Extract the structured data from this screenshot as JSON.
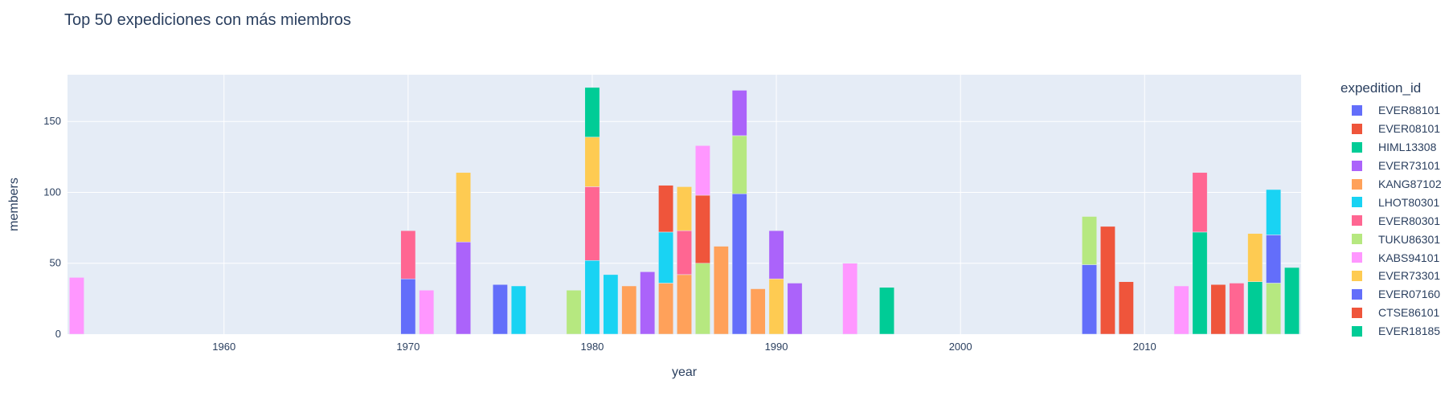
{
  "chart_data": {
    "type": "bar",
    "barmode": "stack",
    "title": "Top 50 expediciones con más miembros",
    "xlabel": "year",
    "ylabel": "members",
    "xlim": [
      1951.5,
      2018.5
    ],
    "ylim": [
      0,
      183
    ],
    "xticks": [
      1960,
      1970,
      1980,
      1990,
      2000,
      2010
    ],
    "yticks": [
      0,
      50,
      100,
      150
    ],
    "legend_title": "expedition_id",
    "legend_position": "right",
    "legend": [
      {
        "name": "EVER88101",
        "color": "#636efa"
      },
      {
        "name": "EVER08101",
        "color": "#ef553b"
      },
      {
        "name": "HIML13308",
        "color": "#00cc96"
      },
      {
        "name": "EVER73101",
        "color": "#ab63fa"
      },
      {
        "name": "KANG87102",
        "color": "#ffa15a"
      },
      {
        "name": "LHOT80301",
        "color": "#19d3f3"
      },
      {
        "name": "EVER80301",
        "color": "#ff6692"
      },
      {
        "name": "TUKU86301",
        "color": "#b6e880"
      },
      {
        "name": "KABS94101",
        "color": "#ff97ff"
      },
      {
        "name": "EVER73301",
        "color": "#fecb52"
      },
      {
        "name": "EVER07160",
        "color": "#636efa"
      },
      {
        "name": "CTSE86101",
        "color": "#ef553b"
      },
      {
        "name": "EVER18185",
        "color": "#00cc96"
      }
    ],
    "bars": [
      {
        "year": 1952,
        "segments": [
          {
            "value": 40,
            "color": "#ff97ff"
          }
        ]
      },
      {
        "year": 1970,
        "segments": [
          {
            "value": 39,
            "color": "#636efa"
          },
          {
            "value": 34,
            "color": "#ff6692"
          }
        ]
      },
      {
        "year": 1971,
        "segments": [
          {
            "value": 31,
            "color": "#ff97ff"
          }
        ]
      },
      {
        "year": 1973,
        "segments": [
          {
            "value": 65,
            "color": "#ab63fa"
          },
          {
            "value": 49,
            "color": "#fecb52"
          }
        ]
      },
      {
        "year": 1975,
        "segments": [
          {
            "value": 35,
            "color": "#636efa"
          }
        ]
      },
      {
        "year": 1976,
        "segments": [
          {
            "value": 34,
            "color": "#19d3f3"
          }
        ]
      },
      {
        "year": 1979,
        "segments": [
          {
            "value": 31,
            "color": "#b6e880"
          }
        ]
      },
      {
        "year": 1980,
        "segments": [
          {
            "value": 52,
            "color": "#19d3f3"
          },
          {
            "value": 52,
            "color": "#ff6692"
          },
          {
            "value": 35,
            "color": "#fecb52"
          },
          {
            "value": 35,
            "color": "#00cc96"
          }
        ]
      },
      {
        "year": 1981,
        "segments": [
          {
            "value": 42,
            "color": "#19d3f3"
          }
        ]
      },
      {
        "year": 1982,
        "segments": [
          {
            "value": 34,
            "color": "#ffa15a"
          }
        ]
      },
      {
        "year": 1983,
        "segments": [
          {
            "value": 44,
            "color": "#ab63fa"
          }
        ]
      },
      {
        "year": 1984,
        "segments": [
          {
            "value": 36,
            "color": "#ffa15a"
          },
          {
            "value": 36,
            "color": "#19d3f3"
          },
          {
            "value": 33,
            "color": "#ef553b"
          }
        ]
      },
      {
        "year": 1985,
        "segments": [
          {
            "value": 42,
            "color": "#ffa15a"
          },
          {
            "value": 31,
            "color": "#ff6692"
          },
          {
            "value": 31,
            "color": "#fecb52"
          }
        ]
      },
      {
        "year": 1986,
        "segments": [
          {
            "value": 50,
            "color": "#b6e880"
          },
          {
            "value": 48,
            "color": "#ef553b"
          },
          {
            "value": 35,
            "color": "#ff97ff"
          }
        ]
      },
      {
        "year": 1987,
        "segments": [
          {
            "value": 62,
            "color": "#ffa15a"
          }
        ]
      },
      {
        "year": 1988,
        "segments": [
          {
            "value": 99,
            "color": "#636efa"
          },
          {
            "value": 41,
            "color": "#b6e880"
          },
          {
            "value": 32,
            "color": "#ab63fa"
          }
        ]
      },
      {
        "year": 1989,
        "segments": [
          {
            "value": 32,
            "color": "#ffa15a"
          }
        ]
      },
      {
        "year": 1990,
        "segments": [
          {
            "value": 39,
            "color": "#fecb52"
          },
          {
            "value": 34,
            "color": "#ab63fa"
          }
        ]
      },
      {
        "year": 1991,
        "segments": [
          {
            "value": 36,
            "color": "#ab63fa"
          }
        ]
      },
      {
        "year": 1994,
        "segments": [
          {
            "value": 50,
            "color": "#ff97ff"
          }
        ]
      },
      {
        "year": 1996,
        "segments": [
          {
            "value": 33,
            "color": "#00cc96"
          }
        ]
      },
      {
        "year": 2007,
        "segments": [
          {
            "value": 49,
            "color": "#636efa"
          },
          {
            "value": 34,
            "color": "#b6e880"
          }
        ]
      },
      {
        "year": 2008,
        "segments": [
          {
            "value": 76,
            "color": "#ef553b"
          }
        ]
      },
      {
        "year": 2009,
        "segments": [
          {
            "value": 37,
            "color": "#ef553b"
          }
        ]
      },
      {
        "year": 2012,
        "segments": [
          {
            "value": 34,
            "color": "#ff97ff"
          }
        ]
      },
      {
        "year": 2013,
        "segments": [
          {
            "value": 72,
            "color": "#00cc96"
          },
          {
            "value": 42,
            "color": "#ff6692"
          }
        ]
      },
      {
        "year": 2014,
        "segments": [
          {
            "value": 35,
            "color": "#ef553b"
          }
        ]
      },
      {
        "year": 2015,
        "segments": [
          {
            "value": 36,
            "color": "#ff6692"
          }
        ]
      },
      {
        "year": 2016,
        "segments": [
          {
            "value": 37,
            "color": "#00cc96"
          },
          {
            "value": 34,
            "color": "#fecb52"
          }
        ]
      },
      {
        "year": 2017,
        "segments": [
          {
            "value": 36,
            "color": "#b6e880"
          },
          {
            "value": 34,
            "color": "#636efa"
          },
          {
            "value": 32,
            "color": "#19d3f3"
          }
        ]
      },
      {
        "year": 2018,
        "segments": [
          {
            "value": 47,
            "color": "#00cc96"
          }
        ]
      }
    ]
  }
}
